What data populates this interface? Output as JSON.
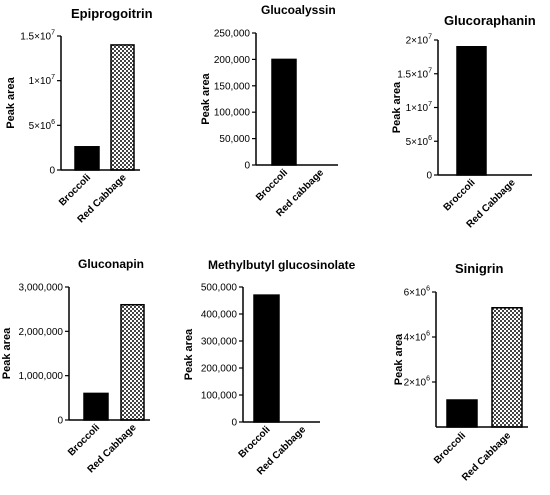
{
  "chart_data": [
    {
      "type": "bar",
      "title": "Epiprogoitrin",
      "ylabel": "Peak area",
      "categories": [
        "Broccoli",
        "Red Cabbage"
      ],
      "values": [
        2600000,
        14000000
      ],
      "ylim": [
        0,
        15000000
      ],
      "yticks": [
        {
          "value": 0,
          "base": "0",
          "exp": ""
        },
        {
          "value": 5000000,
          "base": "5×10",
          "exp": "6"
        },
        {
          "value": 10000000,
          "base": "1×10",
          "exp": "7"
        },
        {
          "value": 15000000,
          "base": "1.5×10",
          "exp": "7"
        }
      ],
      "fills": [
        "solid",
        "checker"
      ]
    },
    {
      "type": "bar",
      "title": "Glucoalyssin",
      "ylabel": "Peak area",
      "categories": [
        "Broccoli",
        "Red cabbage"
      ],
      "values": [
        200000,
        0
      ],
      "ylim": [
        0,
        250000
      ],
      "yticks": [
        {
          "value": 0,
          "base": "0",
          "exp": ""
        },
        {
          "value": 50000,
          "base": "50,000",
          "exp": ""
        },
        {
          "value": 100000,
          "base": "100,000",
          "exp": ""
        },
        {
          "value": 150000,
          "base": "150,000",
          "exp": ""
        },
        {
          "value": 200000,
          "base": "200,000",
          "exp": ""
        },
        {
          "value": 250000,
          "base": "250,000",
          "exp": ""
        }
      ],
      "fills": [
        "solid",
        "solid"
      ]
    },
    {
      "type": "bar",
      "title": "Glucoraphanin",
      "ylabel": "Peak area",
      "categories": [
        "Broccoli",
        "Red Cabbage"
      ],
      "values": [
        19000000,
        0
      ],
      "ylim": [
        0,
        20000000
      ],
      "yticks": [
        {
          "value": 0,
          "base": "0",
          "exp": ""
        },
        {
          "value": 5000000,
          "base": "5×10",
          "exp": "6"
        },
        {
          "value": 10000000,
          "base": "1×10",
          "exp": "7"
        },
        {
          "value": 15000000,
          "base": "1.5×10",
          "exp": "7"
        },
        {
          "value": 20000000,
          "base": "2×10",
          "exp": "7"
        }
      ],
      "fills": [
        "solid",
        "solid"
      ]
    },
    {
      "type": "bar",
      "title": "Gluconapin",
      "ylabel": "Peak area",
      "categories": [
        "Broccoli",
        "Red Cabbage"
      ],
      "values": [
        600000,
        2600000
      ],
      "ylim": [
        0,
        3000000
      ],
      "yticks": [
        {
          "value": 0,
          "base": "0",
          "exp": ""
        },
        {
          "value": 1000000,
          "base": "1,000,000",
          "exp": ""
        },
        {
          "value": 2000000,
          "base": "2,000,000",
          "exp": ""
        },
        {
          "value": 3000000,
          "base": "3,000,000",
          "exp": ""
        }
      ],
      "fills": [
        "solid",
        "checker"
      ]
    },
    {
      "type": "bar",
      "title": "Methylbutyl glucosinolate",
      "ylabel": "Peak area",
      "categories": [
        "Broccoli",
        "Red Cabbage"
      ],
      "values": [
        470000,
        0
      ],
      "ylim": [
        0,
        500000
      ],
      "yticks": [
        {
          "value": 0,
          "base": "0",
          "exp": ""
        },
        {
          "value": 100000,
          "base": "100,000",
          "exp": ""
        },
        {
          "value": 200000,
          "base": "200,000",
          "exp": ""
        },
        {
          "value": 300000,
          "base": "300,000",
          "exp": ""
        },
        {
          "value": 400000,
          "base": "400,000",
          "exp": ""
        },
        {
          "value": 500000,
          "base": "500,000",
          "exp": ""
        }
      ],
      "fills": [
        "solid",
        "solid"
      ]
    },
    {
      "type": "bar",
      "title": "Sinigrin",
      "ylabel": "Peak area",
      "categories": [
        "Broccoli",
        "Red Cabbage"
      ],
      "values": [
        1200000,
        5300000
      ],
      "ylim": [
        0,
        6000000
      ],
      "yticks": [
        {
          "value": 2000000,
          "base": "2×10",
          "exp": "6"
        },
        {
          "value": 4000000,
          "base": "4×10",
          "exp": "6"
        },
        {
          "value": 6000000,
          "base": "6×10",
          "exp": "6"
        }
      ],
      "fills": [
        "solid",
        "checker"
      ]
    }
  ]
}
